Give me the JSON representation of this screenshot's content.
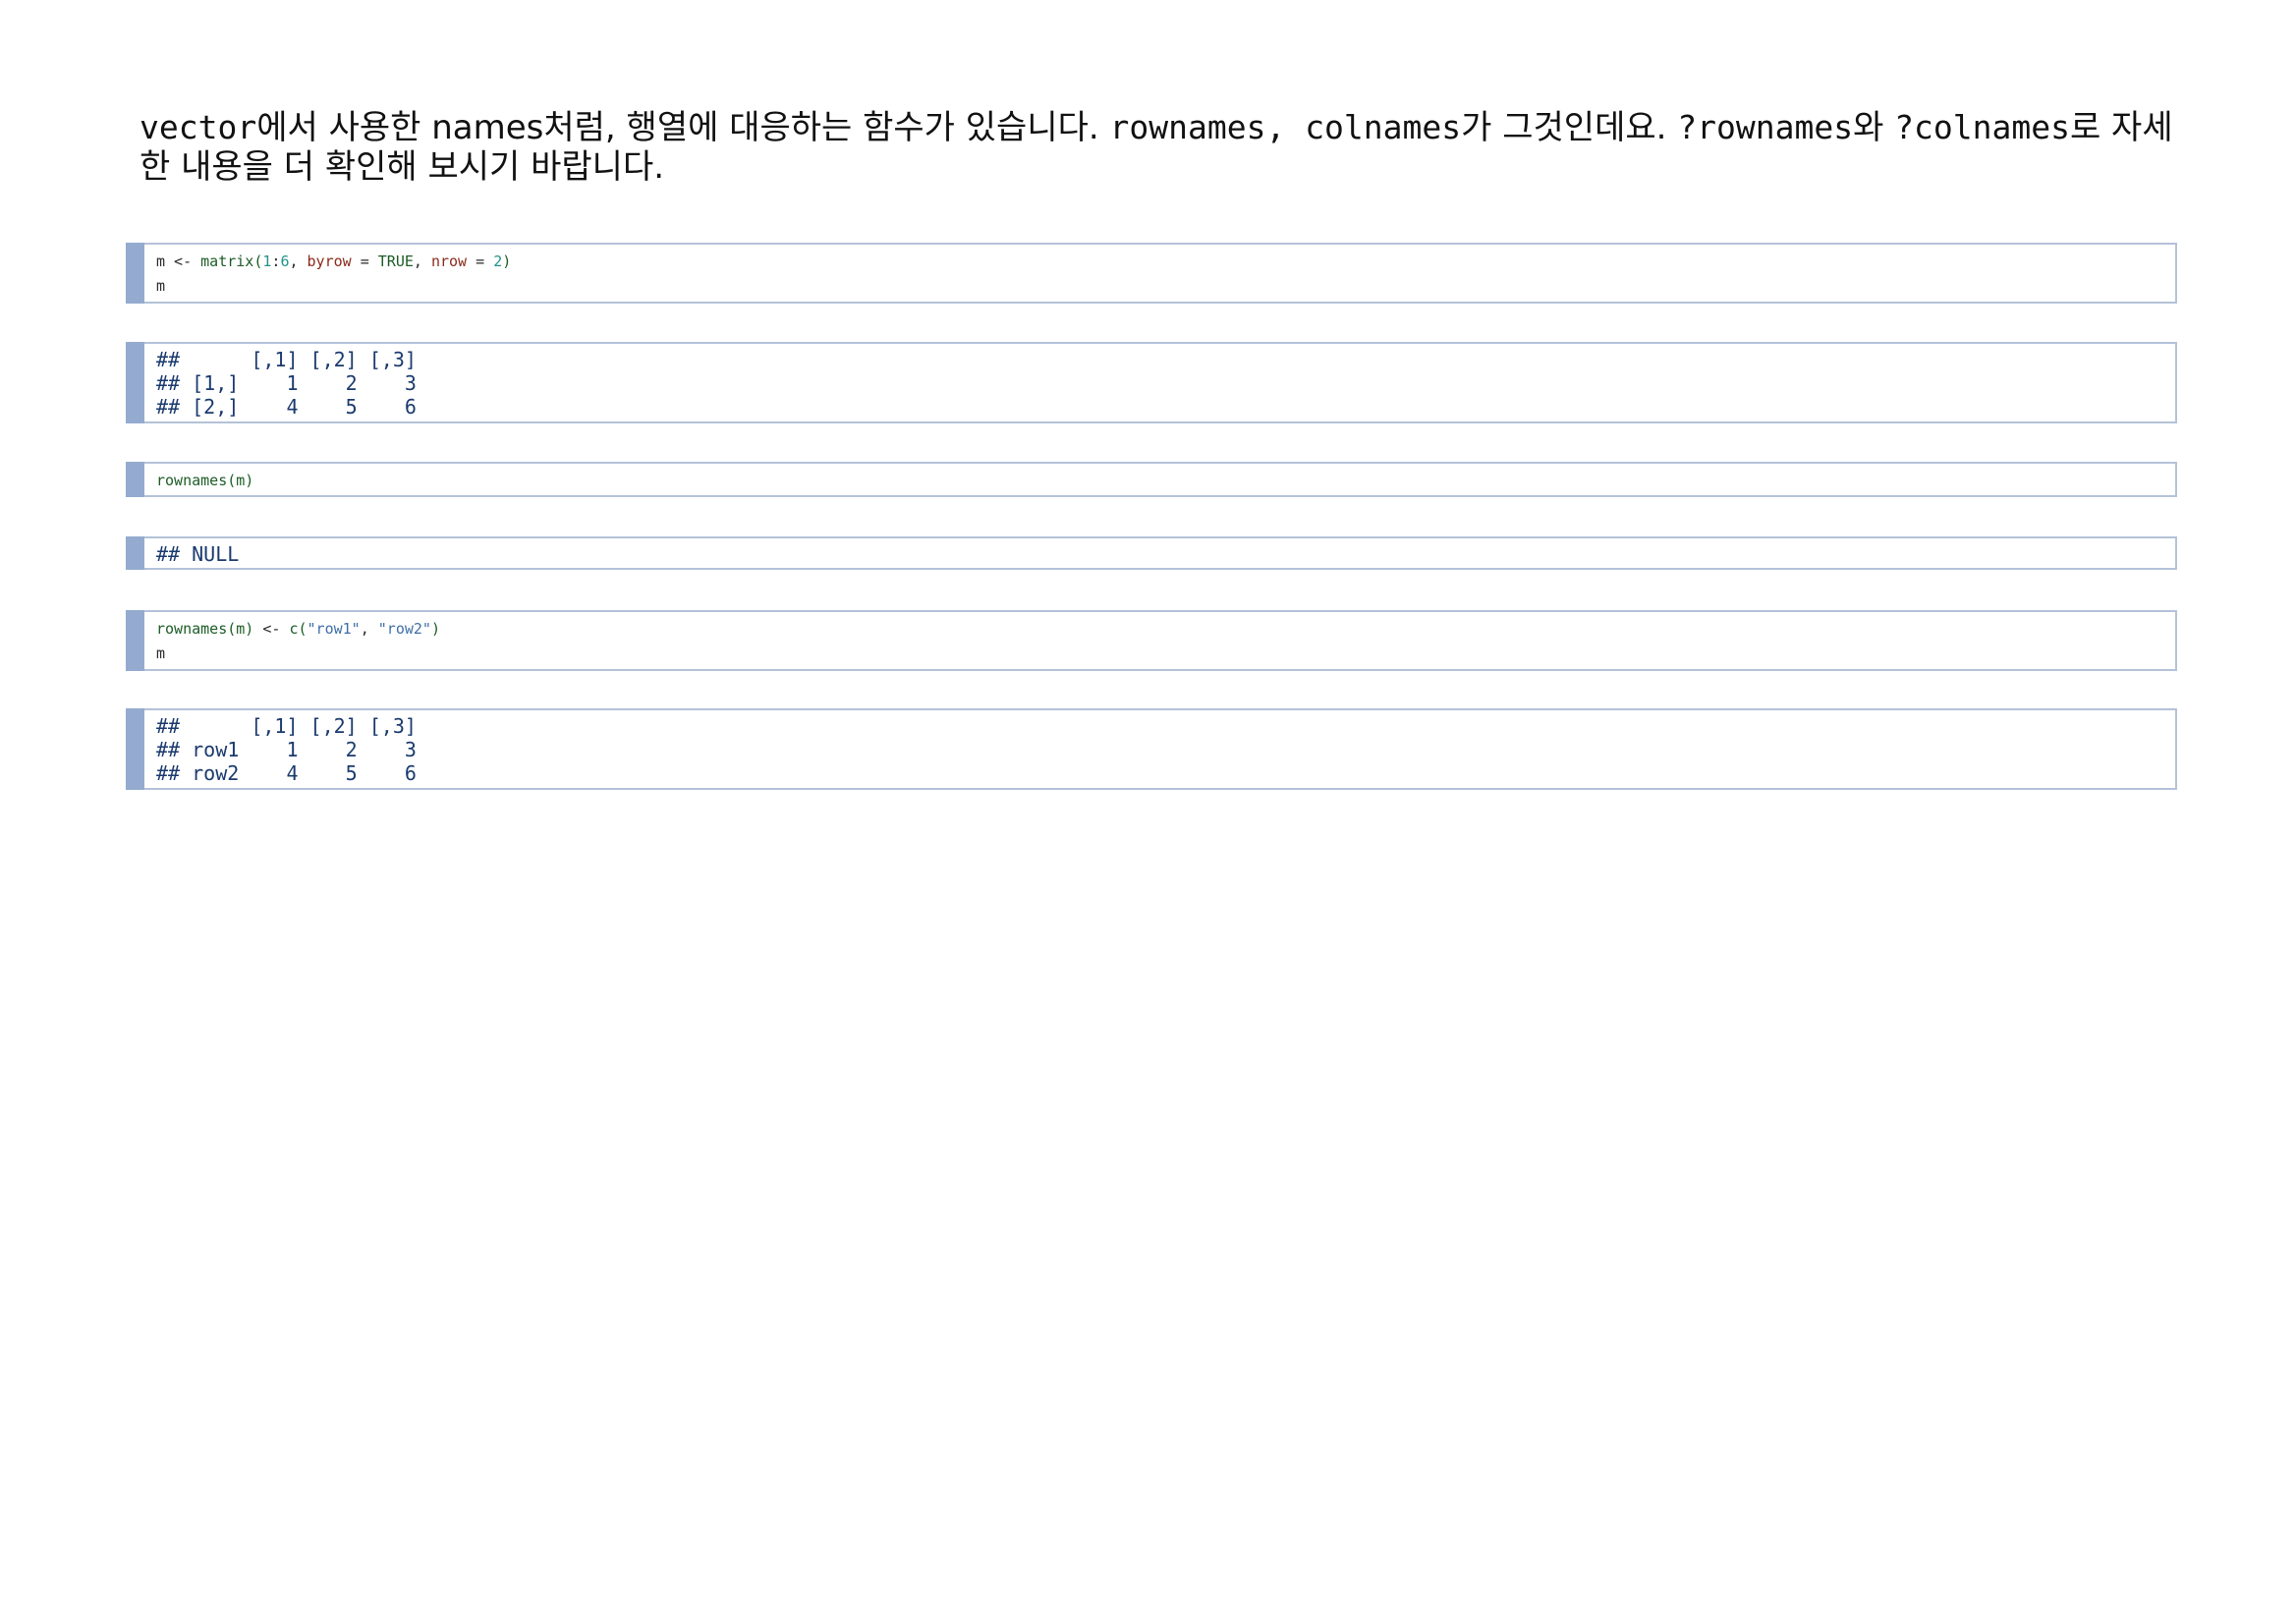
{
  "intro": {
    "text_1": "vector",
    "text_2": "에서 사용한 names처럼, 행열에 대응하는 함수가 있습니다. ",
    "text_3": "rownames, colnames",
    "text_4": "가 그것인데요. ",
    "text_5": "?rownames",
    "text_6": "와 ",
    "text_7": "?colnames",
    "text_8": "로 자세한 내용을 더 확인해 보시기 바랍니다."
  },
  "chunk1": {
    "line1": {
      "var": "m",
      "assign": " <- ",
      "fn": "matrix(",
      "num1": "1",
      "colon": ":",
      "num2": "6",
      "comma1": ", ",
      "arg1": "byrow",
      "eq1": " = ",
      "val1": "TRUE",
      "comma2": ", ",
      "arg2": "nrow",
      "eq2": " = ",
      "val2": "2",
      "close": ")"
    },
    "line2": "m"
  },
  "output1": {
    "lines": [
      "##      [,1] [,2] [,3]",
      "## [1,]    1    2    3",
      "## [2,]    4    5    6"
    ]
  },
  "chunk2": {
    "line1": "rownames(m)"
  },
  "output2": {
    "lines": [
      "## NULL"
    ]
  },
  "chunk3": {
    "line1": {
      "fn": "rownames(m)",
      "assign": " <- ",
      "c": "c(",
      "str1": "\"row1\"",
      "comma": ", ",
      "str2": "\"row2\"",
      "close": ")"
    },
    "line2": "m"
  },
  "output3": {
    "lines": [
      "##      [,1] [,2] [,3]",
      "## row1    1    2    3",
      "## row2    4    5    6"
    ]
  }
}
